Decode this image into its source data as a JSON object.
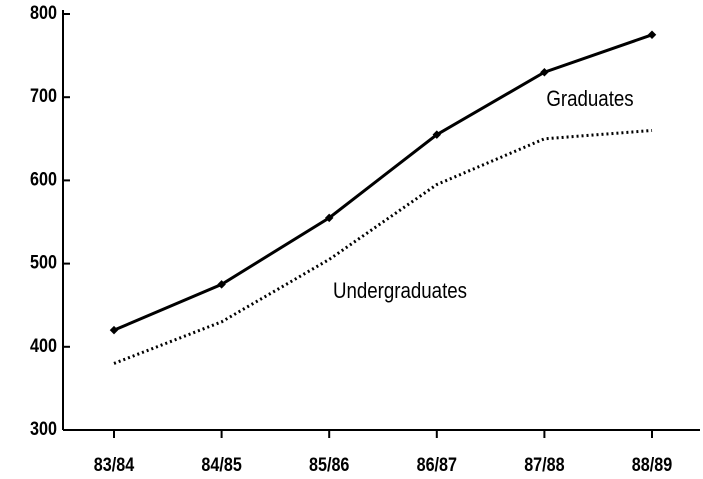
{
  "chart_data": {
    "type": "line",
    "categories": [
      "83/84",
      "84/85",
      "85/86",
      "86/87",
      "87/88",
      "88/89"
    ],
    "series": [
      {
        "name": "Graduates",
        "color": "#000000",
        "style": "solid",
        "values": [
          420,
          475,
          555,
          655,
          730,
          775
        ]
      },
      {
        "name": "Undergraduates",
        "color": "#000000",
        "style": "dotted",
        "values": [
          380,
          430,
          505,
          595,
          650,
          660
        ]
      }
    ],
    "ylim": [
      300,
      800
    ],
    "yticks": [
      300,
      400,
      500,
      600,
      700,
      800
    ],
    "grid": false
  }
}
